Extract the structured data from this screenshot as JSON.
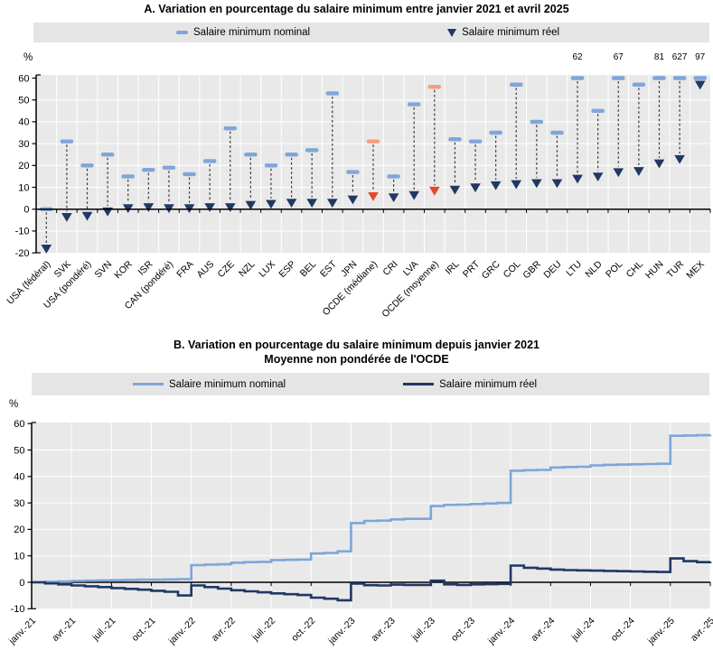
{
  "colors": {
    "nominal_blue": "#7ea6d9",
    "real_navy": "#1f3864",
    "ocde_orange": "#f59d7e",
    "ocde_red": "#e2492b",
    "plot_background": "#e9e9e9",
    "legend_background": "#e5e5e5",
    "gridline": "#ffffff",
    "axis": "#000000",
    "connector": "#3a3a3a"
  },
  "chart_data": [
    {
      "type": "scatter",
      "title": "A. Variation en pourcentage du salaire minimum entre janvier 2021 et avril 2025",
      "ylabel": "%",
      "ylim": [
        -20,
        60
      ],
      "ytick_step": 10,
      "grid": true,
      "legend_position": "top",
      "categories": [
        "USA (fédéral)",
        "SVK",
        "USA (pondéré)",
        "SVN",
        "KOR",
        "ISR",
        "CAN (pondéré)",
        "FRA",
        "AUS",
        "CZE",
        "NZL",
        "LUX",
        "ESP",
        "BEL",
        "EST",
        "JPN",
        "OCDE (médiane)",
        "CRI",
        "LVA",
        "OCDE (moyenne)",
        "IRL",
        "PRT",
        "GRC",
        "COL",
        "GBR",
        "DEU",
        "LTU",
        "NLD",
        "POL",
        "CHL",
        "HUN",
        "TUR",
        "MEX"
      ],
      "series": [
        {
          "name": "Salaire minimum nominal",
          "marker": "dash",
          "values": [
            0,
            31,
            20,
            25,
            15,
            18,
            19,
            16,
            22,
            37,
            25,
            20,
            25,
            27,
            53,
            17,
            31,
            15,
            48,
            56,
            32,
            31,
            35,
            57,
            40,
            35,
            62,
            45,
            67,
            57,
            81,
            627,
            97
          ]
        },
        {
          "name": "Salaire minimum réel",
          "marker": "triangle-down",
          "values": [
            -18,
            -3.5,
            -3,
            -1,
            0.5,
            1,
            0.5,
            0.5,
            1,
            1,
            2,
            2.5,
            3,
            3,
            3,
            4.5,
            6,
            5.5,
            6.5,
            8.5,
            9,
            10,
            11,
            11.5,
            12,
            12,
            14,
            15,
            17,
            17.5,
            21,
            23,
            57
          ]
        }
      ],
      "highlight_indices": [
        16,
        19
      ],
      "clip_max": 60,
      "clipped_annotations": [
        {
          "index": 26,
          "label": "62"
        },
        {
          "index": 28,
          "label": "67"
        },
        {
          "index": 30,
          "label": "81"
        },
        {
          "index": 31,
          "label": "627"
        },
        {
          "index": 32,
          "label": "97"
        }
      ]
    },
    {
      "type": "line",
      "title": "B. Variation en pourcentage du salaire minimum depuis janvier 2021",
      "subtitle": "Moyenne non pondérée de l'OCDE",
      "ylabel": "%",
      "ylim": [
        -10,
        60
      ],
      "ytick_step": 10,
      "grid": true,
      "legend_position": "top",
      "line_style": "step",
      "x_tick_labels": [
        "janv.-21",
        "avr.-21",
        "juil.-21",
        "oct.-21",
        "janv.-22",
        "avr.-22",
        "juil.-22",
        "oct.-22",
        "janv.-23",
        "avr.-23",
        "juil.-23",
        "oct.-23",
        "janv.-24",
        "avr.-24",
        "juil.-24",
        "oct.-24",
        "janv.-25",
        "avr.-25"
      ],
      "months_per_tick": 3,
      "series": [
        {
          "name": "Salaire minimum nominal",
          "values": [
            0,
            0.2,
            0.3,
            0.5,
            0.6,
            0.7,
            0.8,
            0.9,
            1.0,
            1.0,
            1.1,
            1.2,
            6.5,
            6.7,
            6.8,
            7.4,
            7.6,
            7.7,
            8.4,
            8.5,
            8.6,
            10.9,
            11.1,
            11.7,
            22.4,
            23.2,
            23.3,
            23.8,
            24.0,
            24.0,
            28.8,
            29.3,
            29.4,
            29.6,
            29.8,
            30.0,
            42.2,
            42.4,
            42.5,
            43.4,
            43.6,
            43.7,
            44.2,
            44.4,
            44.5,
            44.6,
            44.7,
            44.8,
            55.4,
            55.5,
            55.6,
            55.7
          ]
        },
        {
          "name": "Salaire minimum réel",
          "values": [
            0,
            -0.4,
            -0.8,
            -1.2,
            -1.5,
            -1.8,
            -2.2,
            -2.5,
            -2.8,
            -3.2,
            -3.6,
            -5.0,
            -1.2,
            -1.8,
            -2.4,
            -3.0,
            -3.4,
            -3.8,
            -4.2,
            -4.5,
            -4.8,
            -5.8,
            -6.2,
            -6.8,
            -0.5,
            -1.1,
            -1.2,
            -0.9,
            -1.0,
            -1.0,
            0.6,
            -0.8,
            -1.0,
            -0.8,
            -0.7,
            -0.6,
            6.3,
            5.5,
            5.2,
            4.8,
            4.6,
            4.5,
            4.4,
            4.3,
            4.2,
            4.1,
            4.0,
            3.9,
            9.0,
            8.0,
            7.6,
            7.8
          ]
        }
      ]
    }
  ]
}
